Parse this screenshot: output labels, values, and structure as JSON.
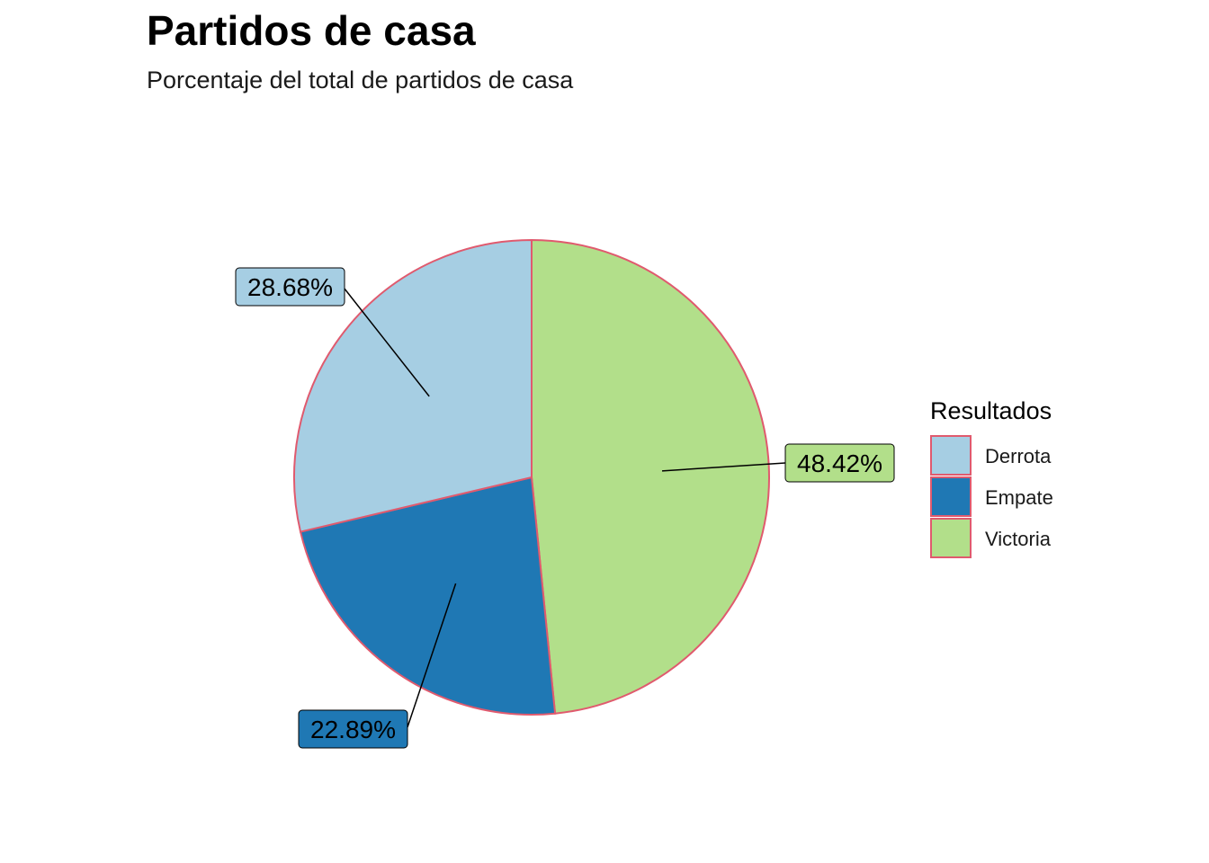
{
  "chart_data": {
    "type": "pie",
    "title": "Partidos de casa",
    "subtitle": "Porcentaje del total de partidos de casa",
    "legend": {
      "title": "Resultados",
      "position": "right"
    },
    "slices": [
      {
        "category": "Derrota",
        "value": 28.68,
        "label": "28.68%",
        "color": "#a6cee3"
      },
      {
        "category": "Empate",
        "value": 22.89,
        "label": "22.89%",
        "color": "#1f78b4"
      },
      {
        "category": "Victoria",
        "value": 48.42,
        "label": "48.42%",
        "color": "#b2df8a"
      }
    ],
    "slice_outline_color": "#e05a6e",
    "label_style": "boxed labels with leader lines"
  }
}
